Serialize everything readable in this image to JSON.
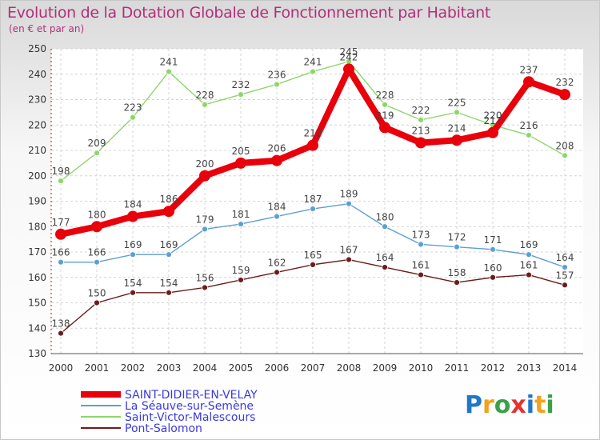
{
  "chart_data": {
    "type": "line",
    "title": "Evolution de la Dotation Globale de Fonctionnement par Habitant",
    "subtitle": "(en € et par an)",
    "x": [
      "2000",
      "2001",
      "2002",
      "2003",
      "2004",
      "2005",
      "2006",
      "2007",
      "2008",
      "2009",
      "2010",
      "2011",
      "2012",
      "2013",
      "2014"
    ],
    "yticks": [
      "130",
      "140",
      "150",
      "160",
      "170",
      "180",
      "190",
      "200",
      "210",
      "220",
      "230",
      "240",
      "250"
    ],
    "ylim": [
      130,
      250
    ],
    "grid": true,
    "legend_position": "bottom-left",
    "series": [
      {
        "name": "SAINT-DIDIER-EN-VELAY",
        "color": "#e8000b",
        "values": [
          177,
          180,
          184,
          186,
          200,
          205,
          206,
          212,
          242,
          219,
          213,
          214,
          217,
          237,
          232
        ],
        "labels": [
          "177",
          "180",
          "184",
          "186",
          "200",
          "205",
          "206",
          "212",
          "242",
          "219",
          "213",
          "214",
          "217",
          "237",
          "232"
        ]
      },
      {
        "name": "La Séauve-sur-Semène",
        "color": "#5f9fd0",
        "values": [
          166,
          166,
          169,
          169,
          179,
          181,
          184,
          187,
          189,
          180,
          173,
          172,
          171,
          169,
          164
        ],
        "labels": [
          "166",
          "166",
          "169",
          "169",
          "179",
          "181",
          "184",
          "187",
          "189",
          "180",
          "173",
          "172",
          "171",
          "169",
          "164"
        ]
      },
      {
        "name": "Saint-Victor-Malescours",
        "color": "#8ed66b",
        "values": [
          198,
          209,
          223,
          241,
          228,
          232,
          236,
          241,
          245,
          228,
          222,
          225,
          220,
          216,
          208
        ],
        "labels": [
          "198",
          "209",
          "223",
          "241",
          "228",
          "232",
          "236",
          "241",
          "245",
          "228",
          "222",
          "225",
          "220",
          "216",
          "208"
        ]
      },
      {
        "name": "Pont-Salomon",
        "color": "#6b1c1c",
        "values": [
          138,
          150,
          154,
          154,
          156,
          159,
          162,
          165,
          167,
          164,
          161,
          158,
          160,
          161,
          157
        ],
        "labels": [
          "138",
          "150",
          "154",
          "154",
          "156",
          "159",
          "162",
          "165",
          "167",
          "164",
          "161",
          "158",
          "160",
          "161",
          "157"
        ]
      }
    ]
  },
  "logo_text": "Proxiti"
}
